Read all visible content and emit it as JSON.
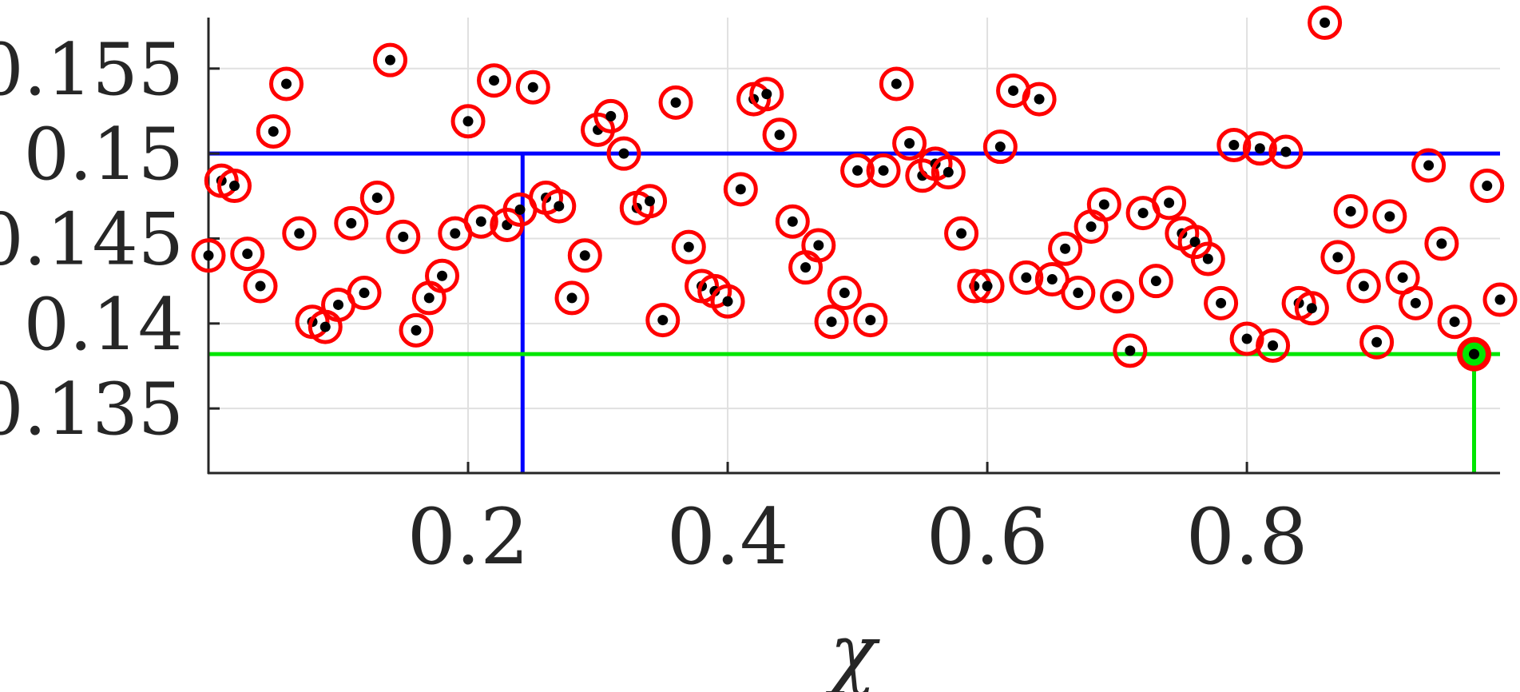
{
  "chart_data": {
    "type": "scatter",
    "title": "",
    "xlabel": "χ",
    "ylabel": "",
    "xlim": [
      0,
      0.995
    ],
    "ylim": [
      0.1312,
      0.158
    ],
    "x_ticks": [
      0.2,
      0.4,
      0.6,
      0.8
    ],
    "x_tick_labels": [
      "0.2",
      "0.4",
      "0.6",
      "0.8"
    ],
    "y_ticks": [
      0.135,
      0.14,
      0.145,
      0.15,
      0.155
    ],
    "y_tick_labels": [
      "0.135",
      "0.14",
      "0.145",
      "0.15",
      "0.155"
    ],
    "grid": true,
    "colors": {
      "marker_ring": "#ff0000",
      "marker_dot": "#000000",
      "reference_line": "#0000ff",
      "best_line": "#00e600",
      "best_marker": "#00e600",
      "grid": "#e0e0e0",
      "axis": "#262626",
      "text": "#262626"
    },
    "reference": {
      "x": 0.242,
      "y": 0.15
    },
    "best": {
      "x": 0.975,
      "y": 0.1382
    },
    "points": [
      [
        0.0,
        0.144
      ],
      [
        0.01,
        0.1484
      ],
      [
        0.02,
        0.1481
      ],
      [
        0.03,
        0.1441
      ],
      [
        0.04,
        0.1422
      ],
      [
        0.05,
        0.1513
      ],
      [
        0.06,
        0.1541
      ],
      [
        0.07,
        0.1453
      ],
      [
        0.08,
        0.1401
      ],
      [
        0.09,
        0.1398
      ],
      [
        0.1,
        0.1411
      ],
      [
        0.11,
        0.1459
      ],
      [
        0.12,
        0.1418
      ],
      [
        0.13,
        0.1474
      ],
      [
        0.14,
        0.1555
      ],
      [
        0.15,
        0.1451
      ],
      [
        0.16,
        0.1396
      ],
      [
        0.17,
        0.1415
      ],
      [
        0.18,
        0.1428
      ],
      [
        0.19,
        0.1453
      ],
      [
        0.2,
        0.1519
      ],
      [
        0.21,
        0.146
      ],
      [
        0.22,
        0.1543
      ],
      [
        0.23,
        0.1458
      ],
      [
        0.24,
        0.1467
      ],
      [
        0.25,
        0.1539
      ],
      [
        0.26,
        0.1474
      ],
      [
        0.27,
        0.1469
      ],
      [
        0.28,
        0.1415
      ],
      [
        0.29,
        0.144
      ],
      [
        0.3,
        0.1514
      ],
      [
        0.31,
        0.1522
      ],
      [
        0.32,
        0.15
      ],
      [
        0.33,
        0.1468
      ],
      [
        0.34,
        0.1472
      ],
      [
        0.35,
        0.1402
      ],
      [
        0.36,
        0.153
      ],
      [
        0.37,
        0.1445
      ],
      [
        0.38,
        0.1422
      ],
      [
        0.39,
        0.1419
      ],
      [
        0.4,
        0.1413
      ],
      [
        0.41,
        0.1479
      ],
      [
        0.42,
        0.1532
      ],
      [
        0.43,
        0.1535
      ],
      [
        0.44,
        0.1511
      ],
      [
        0.45,
        0.146
      ],
      [
        0.46,
        0.1433
      ],
      [
        0.47,
        0.1446
      ],
      [
        0.48,
        0.1401
      ],
      [
        0.49,
        0.1418
      ],
      [
        0.5,
        0.149
      ],
      [
        0.51,
        0.1402
      ],
      [
        0.52,
        0.149
      ],
      [
        0.53,
        0.1541
      ],
      [
        0.54,
        0.1506
      ],
      [
        0.55,
        0.1487
      ],
      [
        0.56,
        0.1494
      ],
      [
        0.57,
        0.1489
      ],
      [
        0.58,
        0.1453
      ],
      [
        0.59,
        0.1422
      ],
      [
        0.6,
        0.1422
      ],
      [
        0.61,
        0.1504
      ],
      [
        0.62,
        0.1537
      ],
      [
        0.63,
        0.1427
      ],
      [
        0.64,
        0.1532
      ],
      [
        0.65,
        0.1426
      ],
      [
        0.66,
        0.1444
      ],
      [
        0.67,
        0.1418
      ],
      [
        0.68,
        0.1457
      ],
      [
        0.69,
        0.147
      ],
      [
        0.7,
        0.1416
      ],
      [
        0.71,
        0.1384
      ],
      [
        0.72,
        0.1465
      ],
      [
        0.73,
        0.1425
      ],
      [
        0.74,
        0.1471
      ],
      [
        0.75,
        0.1453
      ],
      [
        0.76,
        0.1448
      ],
      [
        0.77,
        0.1438
      ],
      [
        0.78,
        0.1412
      ],
      [
        0.79,
        0.1505
      ],
      [
        0.8,
        0.1391
      ],
      [
        0.81,
        0.1503
      ],
      [
        0.82,
        0.1387
      ],
      [
        0.83,
        0.1501
      ],
      [
        0.84,
        0.1412
      ],
      [
        0.85,
        0.1409
      ],
      [
        0.86,
        0.1577
      ],
      [
        0.87,
        0.1439
      ],
      [
        0.88,
        0.1466
      ],
      [
        0.89,
        0.1422
      ],
      [
        0.9,
        0.1389
      ],
      [
        0.91,
        0.1463
      ],
      [
        0.92,
        0.1427
      ],
      [
        0.93,
        0.1412
      ],
      [
        0.94,
        0.1493
      ],
      [
        0.95,
        0.1447
      ],
      [
        0.96,
        0.1401
      ],
      [
        0.975,
        0.1382
      ],
      [
        0.985,
        0.1481
      ],
      [
        0.995,
        0.1414
      ]
    ]
  }
}
